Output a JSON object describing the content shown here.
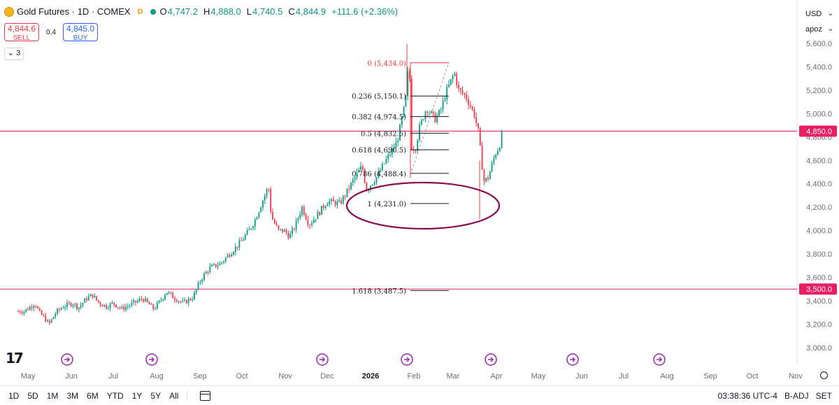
{
  "header": {
    "symbol_title": "Gold Futures · 1D · COMEX",
    "source_badge": "D",
    "ohlc": [
      {
        "label": "O",
        "value": "4,747.2"
      },
      {
        "label": "H",
        "value": "4,888.0"
      },
      {
        "label": "L",
        "value": "4,740.5"
      },
      {
        "label": "C",
        "value": "4,844.9"
      }
    ],
    "change": "+111.6 (+2.36%)"
  },
  "trade": {
    "sell_price": "4,844.6",
    "sell_label": "SELL",
    "spread": "0.4",
    "buy_price": "4,845.0",
    "buy_label": "BUY"
  },
  "collapse_count": "3",
  "right_toolbar": {
    "currency": "USD",
    "scale": "apoz"
  },
  "bottom_bar": {
    "timeframes": [
      "1D",
      "5D",
      "1M",
      "3M",
      "6M",
      "YTD",
      "1Y",
      "5Y",
      "All"
    ],
    "clock": "03:38:36 UTC-4",
    "adj": "B-ADJ",
    "session": "SET"
  },
  "colors": {
    "up": "#089981",
    "down": "#f23645",
    "hline": "#e91e63",
    "fib_start": "#f23645",
    "ellipse": "#880e4f",
    "event_icon": "#9c27b0"
  },
  "chart_data": {
    "type": "candlestick",
    "y_axis": {
      "min": 2900,
      "max": 5700,
      "ticks": [
        "5,600.0",
        "5,400.0",
        "5,200.0",
        "5,000.0",
        "4,800.0",
        "4,600.0",
        "4,400.0",
        "4,200.0",
        "4,000.0",
        "3,800.0",
        "3,600.0",
        "3,400.0",
        "3,200.0",
        "3,000.0"
      ],
      "tick_values": [
        5600,
        5400,
        5200,
        5000,
        4800,
        4600,
        4400,
        4200,
        4000,
        3800,
        3600,
        3400,
        3200,
        3000
      ]
    },
    "x_axis": {
      "labels": [
        "May",
        "Jun",
        "Jul",
        "Aug",
        "Sep",
        "Oct",
        "Nov",
        "Dec",
        "2026",
        "Feb",
        "Mar",
        "Apr",
        "May",
        "Jun",
        "Jul",
        "Aug",
        "Sep",
        "Oct",
        "Nov"
      ],
      "bold": [
        "2026"
      ]
    },
    "horizontal_lines": [
      {
        "price": 4850.0,
        "label": "4,850.0"
      },
      {
        "price": 3500.0,
        "label": "3,500.0"
      }
    ],
    "fibonacci": [
      {
        "level": "0",
        "label": "0 (5,434.0)",
        "price": 5434.0
      },
      {
        "level": "0.236",
        "label": "0.236 (5,150.1)",
        "price": 5150.1
      },
      {
        "level": "0.382",
        "label": "0.382 (4,974.5)",
        "price": 4974.5
      },
      {
        "level": "0.5",
        "label": "0.5 (4,832.5)",
        "price": 4832.5
      },
      {
        "level": "0.618",
        "label": "0.618 (4,690.5)",
        "price": 4690.5
      },
      {
        "level": "0.786",
        "label": "0.786 (4,488.4)",
        "price": 4488.4
      },
      {
        "level": "1",
        "label": "1 (4,231.0)",
        "price": 4231.0
      },
      {
        "level": "1.618",
        "label": "1.618 (3,487.5)",
        "price": 3487.5
      }
    ],
    "price_path": [
      [
        "2025-04-28",
        3310
      ],
      [
        "2025-05-02",
        3340
      ],
      [
        "2025-05-06",
        3380
      ],
      [
        "2025-05-09",
        3300
      ],
      [
        "2025-05-13",
        3250
      ],
      [
        "2025-05-16",
        3200
      ],
      [
        "2025-05-21",
        3300
      ],
      [
        "2025-05-26",
        3350
      ],
      [
        "2025-06-02",
        3380
      ],
      [
        "2025-06-06",
        3340
      ],
      [
        "2025-06-12",
        3420
      ],
      [
        "2025-06-16",
        3450
      ],
      [
        "2025-06-20",
        3390
      ],
      [
        "2025-06-26",
        3350
      ],
      [
        "2025-07-01",
        3380
      ],
      [
        "2025-07-07",
        3330
      ],
      [
        "2025-07-14",
        3370
      ],
      [
        "2025-07-22",
        3420
      ],
      [
        "2025-07-30",
        3330
      ],
      [
        "2025-08-05",
        3420
      ],
      [
        "2025-08-08",
        3480
      ],
      [
        "2025-08-13",
        3430
      ],
      [
        "2025-08-20",
        3380
      ],
      [
        "2025-08-27",
        3430
      ],
      [
        "2025-09-02",
        3590
      ],
      [
        "2025-09-08",
        3680
      ],
      [
        "2025-09-16",
        3720
      ],
      [
        "2025-09-22",
        3800
      ],
      [
        "2025-09-30",
        3900
      ],
      [
        "2025-10-06",
        4000
      ],
      [
        "2025-10-10",
        4080
      ],
      [
        "2025-10-14",
        4200
      ],
      [
        "2025-10-20",
        4380
      ],
      [
        "2025-10-22",
        4120
      ],
      [
        "2025-10-27",
        4000
      ],
      [
        "2025-10-31",
        4000
      ],
      [
        "2025-11-04",
        3950
      ],
      [
        "2025-11-07",
        4010
      ],
      [
        "2025-11-13",
        4200
      ],
      [
        "2025-11-18",
        4050
      ],
      [
        "2025-11-25",
        4150
      ],
      [
        "2025-12-01",
        4250
      ],
      [
        "2025-12-10",
        4230
      ],
      [
        "2025-12-15",
        4330
      ],
      [
        "2025-12-22",
        4480
      ],
      [
        "2025-12-26",
        4550
      ],
      [
        "2025-12-29",
        4350
      ],
      [
        "2026-01-05",
        4450
      ],
      [
        "2026-01-12",
        4600
      ],
      [
        "2026-01-20",
        4760
      ],
      [
        "2026-01-26",
        5100
      ],
      [
        "2026-01-28",
        5400
      ],
      [
        "2026-01-29",
        5300
      ],
      [
        "2026-01-30",
        4720
      ],
      [
        "2026-02-02",
        4700
      ],
      [
        "2026-02-05",
        4880
      ],
      [
        "2026-02-10",
        5050
      ],
      [
        "2026-02-16",
        4950
      ],
      [
        "2026-02-20",
        5020
      ],
      [
        "2026-02-24",
        5180
      ],
      [
        "2026-03-02",
        5350
      ],
      [
        "2026-03-05",
        5200
      ],
      [
        "2026-03-10",
        5150
      ],
      [
        "2026-03-16",
        5000
      ],
      [
        "2026-03-19",
        4850
      ],
      [
        "2026-03-23",
        4420
      ],
      [
        "2026-03-26",
        4450
      ],
      [
        "2026-03-31",
        4650
      ],
      [
        "2026-04-03",
        4720
      ],
      [
        "2026-04-06",
        4845
      ]
    ]
  }
}
